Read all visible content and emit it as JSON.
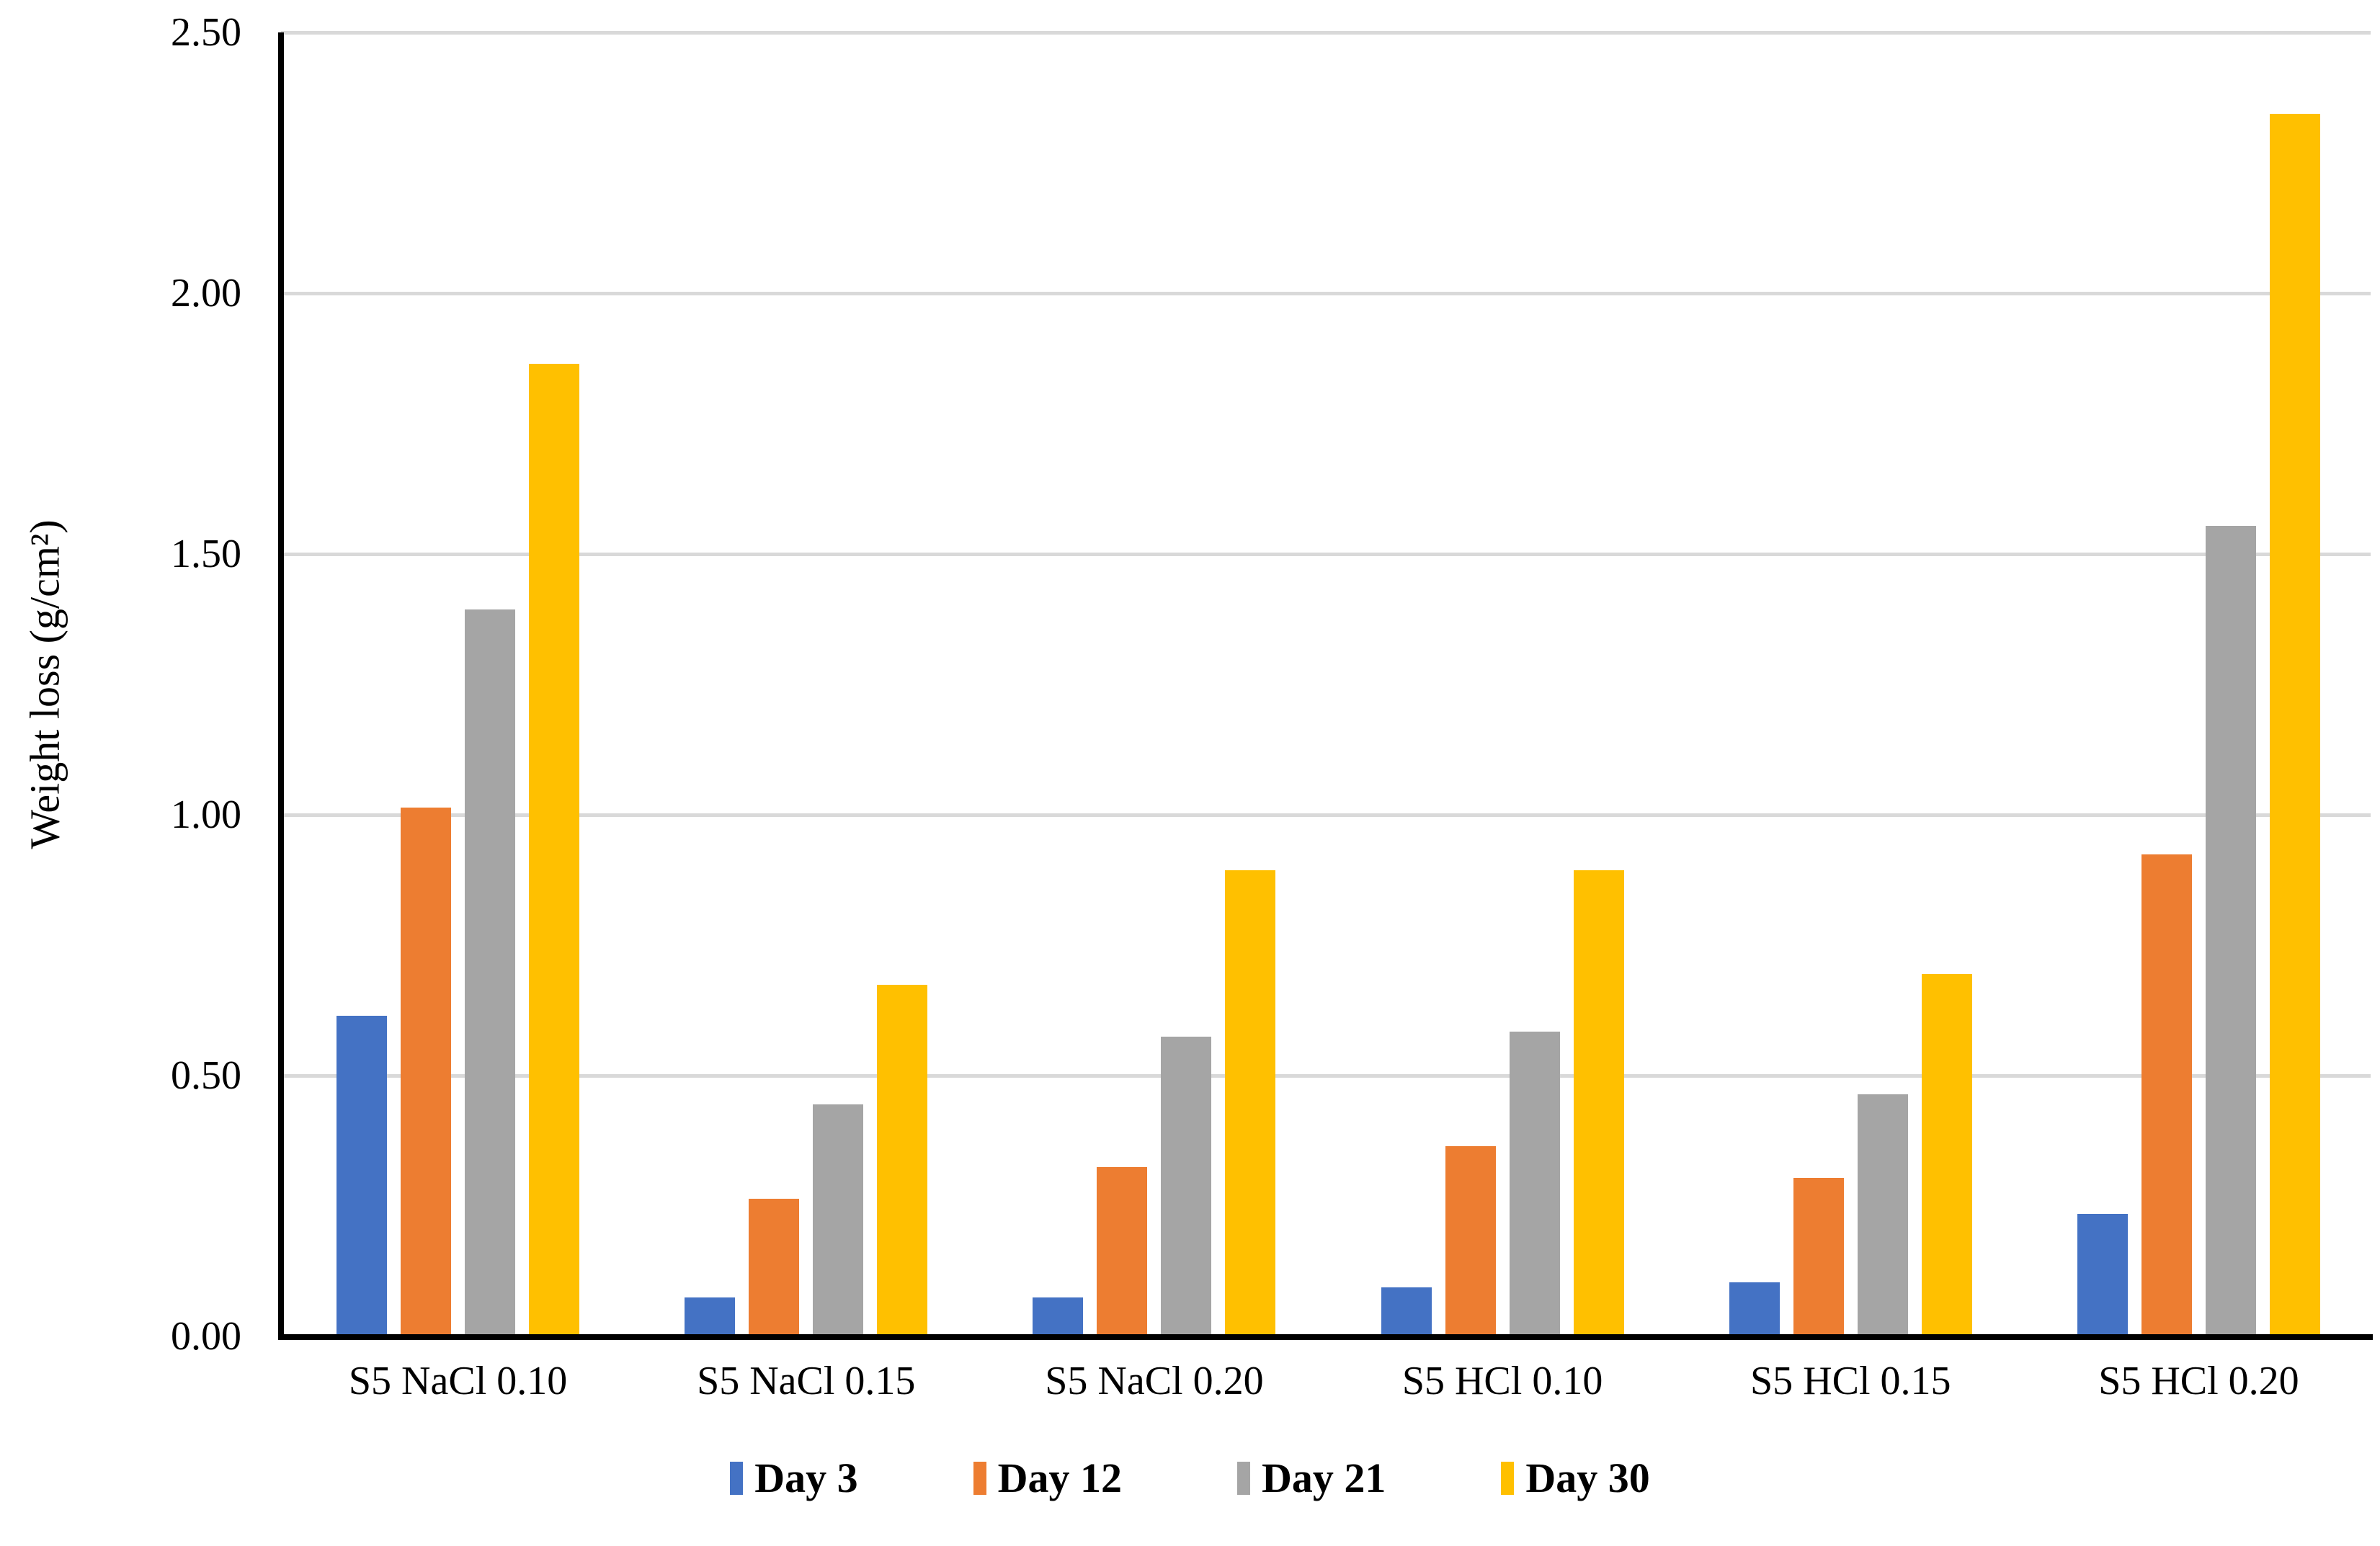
{
  "chart_data": {
    "type": "bar",
    "title": "",
    "xlabel": "",
    "ylabel": "Weight loss (g/cm²)",
    "ylim": [
      0,
      2.5
    ],
    "ytick_labels": [
      "0.00",
      "0.50",
      "1.00",
      "1.50",
      "2.00",
      "2.50"
    ],
    "grid": true,
    "legend_position": "bottom",
    "categories": [
      "S5 NaCl 0.10",
      "S5 NaCl 0.15",
      "S5 NaCl 0.20",
      "S5 HCl 0.10",
      "S5 HCl 0.15",
      "S5 HCl 0.20"
    ],
    "series": [
      {
        "name": "Day 3",
        "color": "#4472C4",
        "values": [
          0.61,
          0.07,
          0.07,
          0.09,
          0.1,
          0.23
        ]
      },
      {
        "name": "Day 12",
        "color": "#ED7D31",
        "values": [
          1.01,
          0.26,
          0.32,
          0.36,
          0.3,
          0.92
        ]
      },
      {
        "name": "Day 21",
        "color": "#A5A5A5",
        "values": [
          1.39,
          0.44,
          0.57,
          0.58,
          0.46,
          1.55
        ]
      },
      {
        "name": "Day 30",
        "color": "#FFC000",
        "values": [
          1.86,
          0.67,
          0.89,
          0.89,
          0.69,
          2.34
        ]
      }
    ]
  },
  "colors": {
    "axis": "#000000",
    "gridline": "#D9D9D9",
    "background": "#FFFFFF"
  }
}
